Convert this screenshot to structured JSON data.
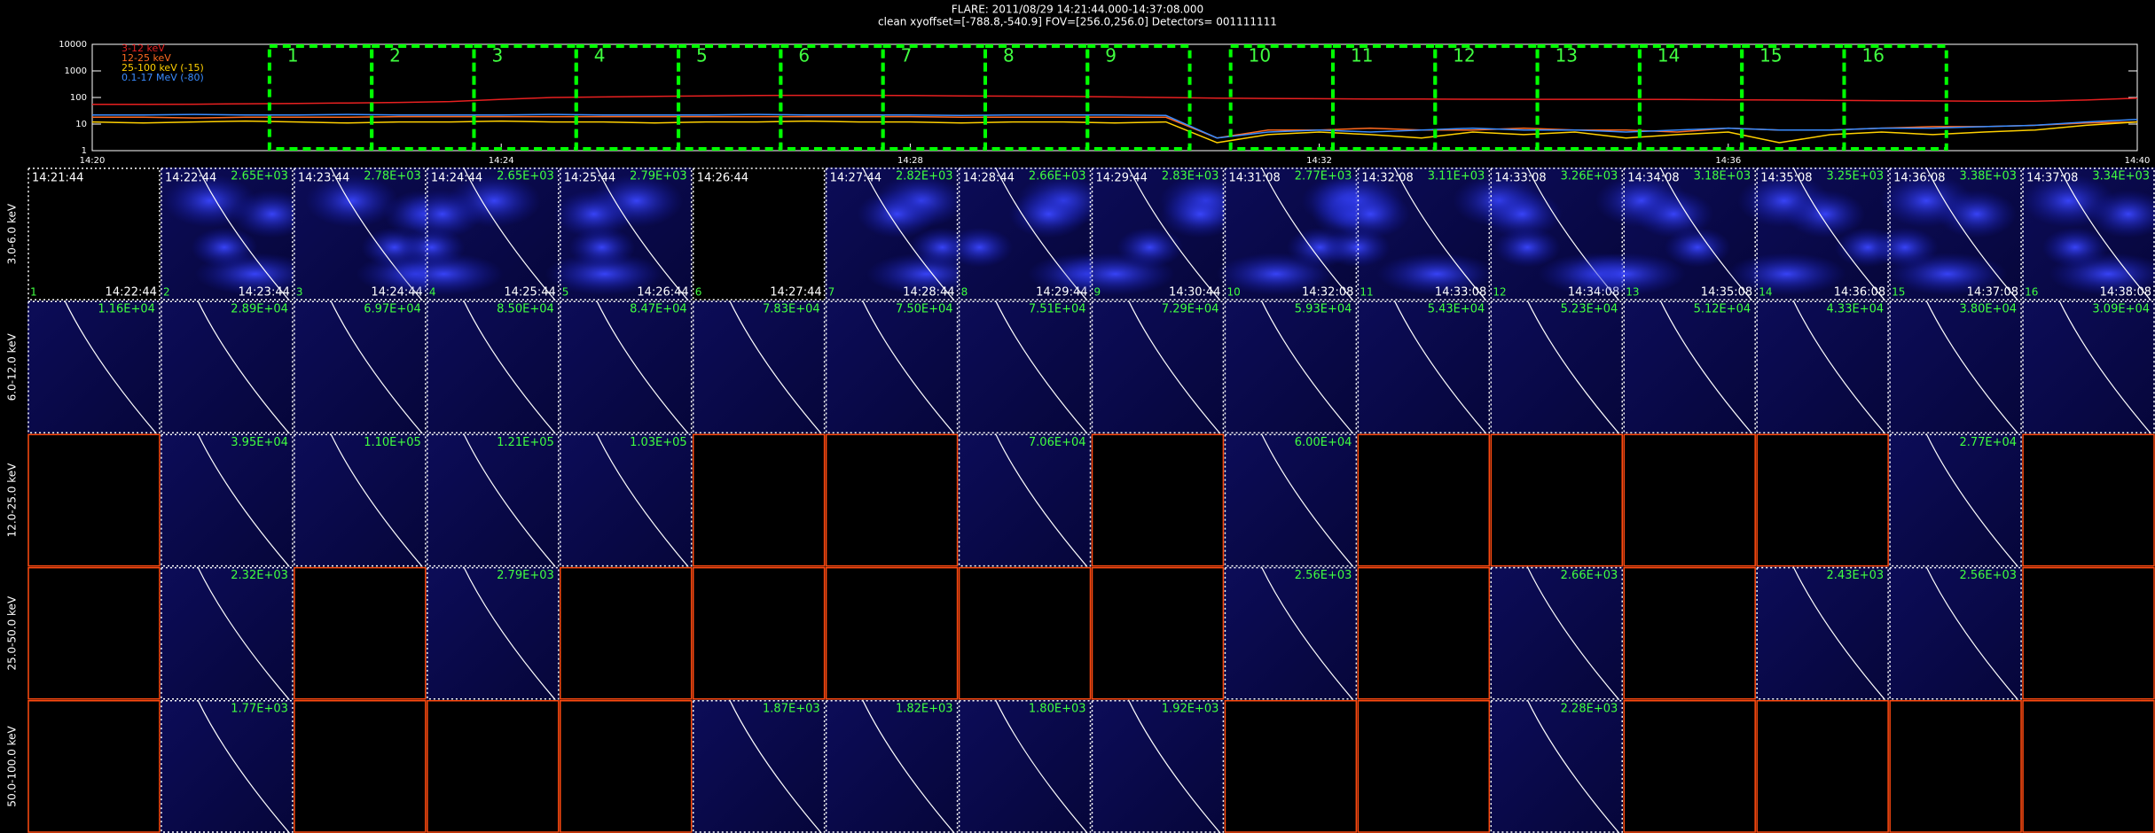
{
  "chart_data": {
    "type": "line",
    "title": "FLARE: 2011/08/29 14:21:44.000-14:37:08.000",
    "subtitle": "clean    xyoffset=[-788.8,-540.9]    FOV=[256.0,256.0]    Detectors= 001111111",
    "log_y": true,
    "ylim": [
      1,
      10000
    ],
    "yticks": [
      1,
      10,
      100,
      1000,
      10000
    ],
    "xlim": [
      "14:20:00",
      "14:40:00"
    ],
    "xticks": [
      {
        "value": "14:20:00",
        "label": "14:20"
      },
      {
        "value": "14:24:00",
        "label": "14:24"
      },
      {
        "value": "14:28:00",
        "label": "14:28"
      },
      {
        "value": "14:32:00",
        "label": "14:32"
      },
      {
        "value": "14:36:00",
        "label": "14:36"
      },
      {
        "value": "14:40:00",
        "label": "14:40"
      }
    ],
    "x": [
      "14:20:00",
      "14:20:30",
      "14:21:00",
      "14:21:30",
      "14:22:00",
      "14:22:30",
      "14:23:00",
      "14:23:30",
      "14:24:00",
      "14:24:30",
      "14:25:00",
      "14:25:30",
      "14:26:00",
      "14:26:30",
      "14:27:00",
      "14:27:30",
      "14:28:00",
      "14:28:30",
      "14:29:00",
      "14:29:30",
      "14:30:00",
      "14:30:30",
      "14:31:00",
      "14:31:30",
      "14:32:00",
      "14:32:30",
      "14:33:00",
      "14:33:30",
      "14:34:00",
      "14:34:30",
      "14:35:00",
      "14:35:30",
      "14:36:00",
      "14:36:30",
      "14:37:00",
      "14:37:30",
      "14:38:00",
      "14:38:30",
      "14:39:00",
      "14:39:30",
      "14:40:00"
    ],
    "series": [
      {
        "name": "3-12 keV",
        "color": "#e82020",
        "values": [
          55,
          55,
          56,
          58,
          60,
          62,
          65,
          70,
          85,
          100,
          105,
          110,
          115,
          118,
          120,
          120,
          118,
          115,
          112,
          110,
          105,
          100,
          95,
          92,
          90,
          88,
          88,
          86,
          85,
          85,
          85,
          84,
          82,
          80,
          78,
          76,
          74,
          72,
          72,
          80,
          95
        ]
      },
      {
        "name": "12-25 keV",
        "color": "#ff6a20",
        "values": [
          18,
          18,
          17,
          18,
          18,
          18,
          19,
          19,
          19,
          19,
          19,
          19,
          19,
          19,
          19,
          19,
          19,
          18,
          18,
          18,
          18,
          18,
          3,
          6,
          6,
          7,
          6,
          6,
          7,
          6,
          6,
          5,
          7,
          6,
          6,
          7,
          8,
          8,
          9,
          11,
          12
        ]
      },
      {
        "name": "25-100 keV (-15)",
        "color": "#ffd000",
        "values": [
          12,
          11,
          12,
          13,
          12,
          11,
          12,
          12,
          13,
          12,
          12,
          11,
          12,
          12,
          13,
          12,
          12,
          11,
          12,
          12,
          11,
          12,
          2,
          4,
          5,
          4,
          3,
          5,
          4,
          5,
          3,
          4,
          5,
          2,
          4,
          5,
          4,
          5,
          6,
          9,
          12
        ]
      },
      {
        "name": "0.1-17 MeV (-80)",
        "color": "#3a8cff",
        "values": [
          22,
          22,
          23,
          22,
          22,
          23,
          22,
          22,
          22,
          23,
          22,
          22,
          22,
          23,
          22,
          22,
          22,
          21,
          22,
          22,
          22,
          21,
          3,
          5,
          6,
          5,
          6,
          7,
          6,
          6,
          5,
          6,
          7,
          6,
          6,
          7,
          7,
          8,
          9,
          12,
          15
        ]
      }
    ],
    "intervals": [
      {
        "label": "1",
        "start": "14:21:44",
        "end": "14:22:44"
      },
      {
        "label": "2",
        "start": "14:22:44",
        "end": "14:23:44"
      },
      {
        "label": "3",
        "start": "14:23:44",
        "end": "14:24:44"
      },
      {
        "label": "4",
        "start": "14:24:44",
        "end": "14:25:44"
      },
      {
        "label": "5",
        "start": "14:25:44",
        "end": "14:26:44"
      },
      {
        "label": "6",
        "start": "14:26:44",
        "end": "14:27:44"
      },
      {
        "label": "7",
        "start": "14:27:44",
        "end": "14:28:44"
      },
      {
        "label": "8",
        "start": "14:28:44",
        "end": "14:29:44"
      },
      {
        "label": "9",
        "start": "14:29:44",
        "end": "14:30:44"
      },
      {
        "label": "10",
        "start": "14:31:08",
        "end": "14:32:08"
      },
      {
        "label": "11",
        "start": "14:32:08",
        "end": "14:33:08"
      },
      {
        "label": "12",
        "start": "14:33:08",
        "end": "14:34:08"
      },
      {
        "label": "13",
        "start": "14:34:08",
        "end": "14:35:08"
      },
      {
        "label": "14",
        "start": "14:35:08",
        "end": "14:36:08"
      },
      {
        "label": "15",
        "start": "14:36:08",
        "end": "14:37:08"
      },
      {
        "label": "16",
        "start": "14:37:08",
        "end": "14:38:08"
      }
    ]
  },
  "image_grid": {
    "rows": [
      {
        "label": "3.0-6.0 keV",
        "values": [
          null,
          "2.65E+03",
          "2.78E+03",
          "2.65E+03",
          "2.79E+03",
          null,
          "2.82E+03",
          "2.66E+03",
          "2.83E+03",
          "2.77E+03",
          "3.11E+03",
          "3.26E+03",
          "3.18E+03",
          "3.25E+03",
          "3.38E+03",
          "3.34E+03"
        ]
      },
      {
        "label": "6.0-12.0 keV",
        "values": [
          "1.16E+04",
          "2.89E+04",
          "6.97E+04",
          "8.50E+04",
          "8.47E+04",
          "7.83E+04",
          "7.50E+04",
          "7.51E+04",
          "7.29E+04",
          "5.93E+04",
          "5.43E+04",
          "5.23E+04",
          "5.12E+04",
          "4.33E+04",
          "3.80E+04",
          "3.09E+04"
        ]
      },
      {
        "label": "12.0-25.0 keV",
        "values": [
          null,
          "3.95E+04",
          "1.10E+05",
          "1.21E+05",
          "1.03E+05",
          null,
          null,
          "7.06E+04",
          null,
          "6.00E+04",
          null,
          null,
          null,
          null,
          "2.77E+04",
          null
        ]
      },
      {
        "label": "25.0-50.0 keV",
        "values": [
          null,
          "2.32E+03",
          null,
          "2.79E+03",
          null,
          null,
          null,
          null,
          null,
          "2.56E+03",
          null,
          "2.66E+03",
          null,
          "2.43E+03",
          "2.56E+03",
          null
        ]
      },
      {
        "label": "50.0-100.0 keV",
        "values": [
          null,
          "1.77E+03",
          null,
          null,
          null,
          "1.87E+03",
          "1.82E+03",
          "1.80E+03",
          "1.92E+03",
          null,
          null,
          "2.28E+03",
          null,
          null,
          null,
          null
        ]
      }
    ]
  }
}
